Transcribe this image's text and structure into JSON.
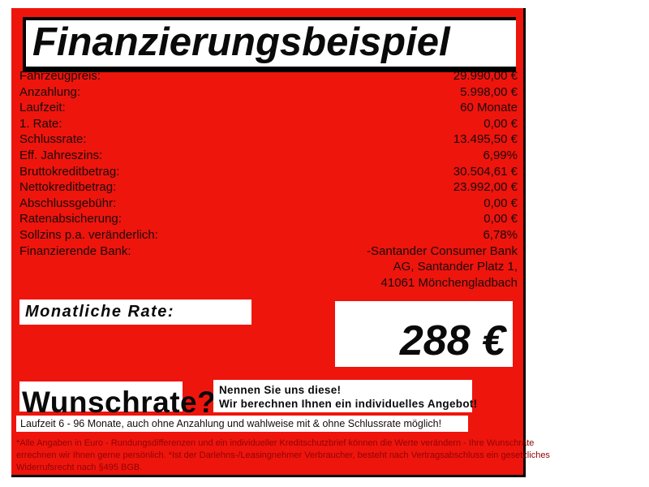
{
  "title": "Finanzierungsbeispiel",
  "colors": {
    "card_red": "#ee150d",
    "fine_print_red": "#8f0404",
    "text_black": "#0a0a0a",
    "box_white": "#ffffff"
  },
  "rows": [
    {
      "label": "Fahrzeugpreis:",
      "value": "29.990,00 €"
    },
    {
      "label": "Anzahlung:",
      "value": "5.998,00 €"
    },
    {
      "label": "Laufzeit:",
      "value": "60 Monate"
    },
    {
      "label": "1. Rate:",
      "value": "0,00 €"
    },
    {
      "label": "Schlussrate:",
      "value": "13.495,50 €"
    },
    {
      "label": "Eff. Jahreszins:",
      "value": "6,99%"
    },
    {
      "label": "Bruttokreditbetrag:",
      "value": "30.504,61 €"
    },
    {
      "label": "Nettokreditbetrag:",
      "value": "23.992,00 €"
    },
    {
      "label": "Abschlussgebühr:",
      "value": "0,00 €"
    },
    {
      "label": "Ratenabsicherung:",
      "value": "0,00 €"
    },
    {
      "label": "Sollzins p.a. veränderlich:",
      "value": "6,78%"
    }
  ],
  "bank": {
    "label": "Finanzierende Bank:",
    "lines": [
      "-Santander Consumer Bank",
      "AG, Santander Platz 1,",
      "41061 Mönchengladbach"
    ]
  },
  "monthly_rate": {
    "label": "Monatliche Rate:",
    "value": "288 €"
  },
  "wunschrate": {
    "headline": "Wunschrate?",
    "callout_lines": [
      "Nennen Sie uns diese!",
      "Wir berechnen Ihnen ein individuelles Angebot!"
    ],
    "terms": "Laufzeit 6 - 96 Monate, auch ohne Anzahlung und wahlweise mit & ohne Schlussrate möglich!"
  },
  "fine_print": [
    "*Alle Angaben in Euro - Rundungsdifferenzen und ein individueller Kreditschutzbrief können die Werte verändern - Ihre Wunschrate",
    "errechnen wir Ihnen gerne persönlich. *Ist der Darlehns-/Leasingnehmer Verbraucher, besteht nach Vertragsabschluss ein gesetzliches",
    "Widerrufsrecht nach §495 BGB."
  ]
}
